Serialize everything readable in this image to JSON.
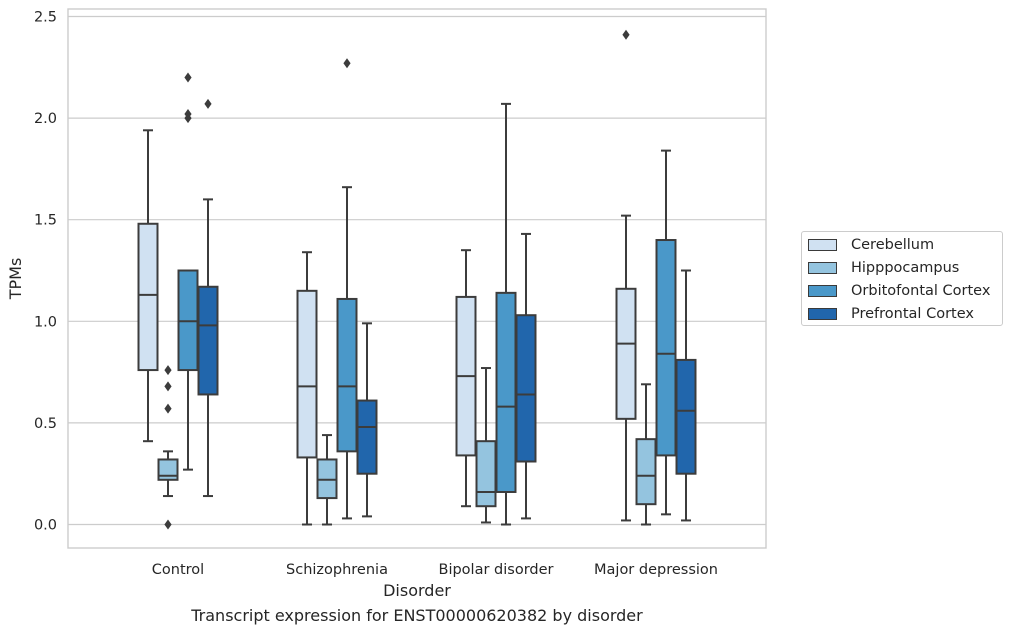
{
  "chart_data": {
    "type": "box",
    "xlabel": "Disorder",
    "ylabel": "TPMs",
    "ylim": [
      -0.12,
      2.54
    ],
    "yticks": [
      0.0,
      0.5,
      1.0,
      1.5,
      2.0,
      2.5
    ],
    "ytick_labels": [
      "0.0",
      "0.5",
      "1.0",
      "1.5",
      "2.0",
      "2.5"
    ],
    "grid": true,
    "legend_position": "right",
    "categories": [
      "Control",
      "Schizophrenia",
      "Bipolar disorder",
      "Major depression"
    ],
    "series": [
      {
        "name": "Cerebellum",
        "color": "#d0e1f2",
        "boxes": [
          {
            "whislo": 0.41,
            "q1": 0.76,
            "med": 1.13,
            "q3": 1.48,
            "whishi": 1.94,
            "fliers": []
          },
          {
            "whislo": 0.0,
            "q1": 0.33,
            "med": 0.68,
            "q3": 1.15,
            "whishi": 1.34,
            "fliers": []
          },
          {
            "whislo": 0.09,
            "q1": 0.34,
            "med": 0.73,
            "q3": 1.12,
            "whishi": 1.35,
            "fliers": []
          },
          {
            "whislo": 0.02,
            "q1": 0.52,
            "med": 0.89,
            "q3": 1.16,
            "whishi": 1.52,
            "fliers": [
              2.41
            ]
          }
        ]
      },
      {
        "name": "Hipppocampus",
        "color": "#94c4df",
        "boxes": [
          {
            "whislo": 0.14,
            "q1": 0.22,
            "med": 0.24,
            "q3": 0.32,
            "whishi": 0.36,
            "fliers": [
              0.0,
              0.57,
              0.68,
              0.76
            ]
          },
          {
            "whislo": 0.0,
            "q1": 0.13,
            "med": 0.22,
            "q3": 0.32,
            "whishi": 0.44,
            "fliers": []
          },
          {
            "whislo": 0.01,
            "q1": 0.09,
            "med": 0.16,
            "q3": 0.41,
            "whishi": 0.77,
            "fliers": []
          },
          {
            "whislo": 0.0,
            "q1": 0.1,
            "med": 0.24,
            "q3": 0.42,
            "whishi": 0.69,
            "fliers": []
          }
        ]
      },
      {
        "name": "Orbitofontal Cortex",
        "color": "#4a98c9",
        "boxes": [
          {
            "whislo": 0.27,
            "q1": 0.76,
            "med": 1.0,
            "q3": 1.25,
            "whishi": 1.25,
            "fliers": [
              2.0,
              2.02,
              2.2
            ]
          },
          {
            "whislo": 0.03,
            "q1": 0.36,
            "med": 0.68,
            "q3": 1.11,
            "whishi": 1.66,
            "fliers": [
              2.27
            ]
          },
          {
            "whislo": 0.0,
            "q1": 0.16,
            "med": 0.58,
            "q3": 1.14,
            "whishi": 2.07,
            "fliers": []
          },
          {
            "whislo": 0.05,
            "q1": 0.34,
            "med": 0.84,
            "q3": 1.4,
            "whishi": 1.84,
            "fliers": []
          }
        ]
      },
      {
        "name": "Prefrontal Cortex",
        "color": "#2166ac",
        "boxes": [
          {
            "whislo": 0.14,
            "q1": 0.64,
            "med": 0.98,
            "q3": 1.17,
            "whishi": 1.6,
            "fliers": [
              2.07
            ]
          },
          {
            "whislo": 0.04,
            "q1": 0.25,
            "med": 0.48,
            "q3": 0.61,
            "whishi": 0.99,
            "fliers": []
          },
          {
            "whislo": 0.03,
            "q1": 0.31,
            "med": 0.64,
            "q3": 1.03,
            "whishi": 1.43,
            "fliers": []
          },
          {
            "whislo": 0.02,
            "q1": 0.25,
            "med": 0.56,
            "q3": 0.81,
            "whishi": 1.25,
            "fliers": []
          }
        ]
      }
    ],
    "caption": "Transcript expression for ENST00000620382 by disorder"
  }
}
